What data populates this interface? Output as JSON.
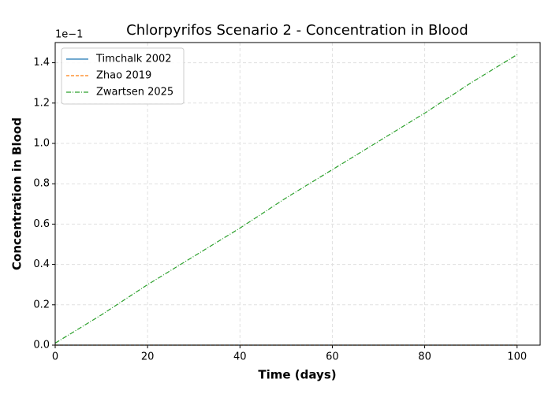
{
  "chart_data": {
    "type": "line",
    "title": "Chlorpyrifos Scenario 2 - Concentration in Blood",
    "x_label": "Time (days)",
    "y_label": "Concentration in Blood",
    "y_offset_label": "1e−1",
    "x": [
      0,
      10,
      20,
      30,
      40,
      50,
      60,
      70,
      80,
      90,
      100
    ],
    "series": [
      {
        "name": "Timchalk 2002",
        "color": "#1f77b4",
        "linestyle": "solid",
        "values": [
          0,
          0,
          0,
          0,
          0,
          0,
          0,
          0,
          0,
          0,
          0
        ]
      },
      {
        "name": "Zhao 2019",
        "color": "#ff7f0e",
        "linestyle": "dashed",
        "values": [
          0,
          0,
          0,
          0,
          0,
          0,
          0,
          0,
          0,
          0,
          0
        ]
      },
      {
        "name": "Zwartsen 2025",
        "color": "#2ca02c",
        "linestyle": "dashdot",
        "values": [
          0.01,
          0.15,
          0.3,
          0.44,
          0.58,
          0.73,
          0.87,
          1.01,
          1.15,
          1.3,
          1.44
        ]
      }
    ],
    "xlim": [
      0,
      105
    ],
    "ylim": [
      0,
      1.5
    ],
    "xticks": [
      0,
      20,
      40,
      60,
      80,
      100
    ],
    "yticks": [
      {
        "value": 0,
        "label": "0.0"
      },
      {
        "value": 0.2,
        "label": "0.2"
      },
      {
        "value": 0.4,
        "label": "0.4"
      },
      {
        "value": 0.6,
        "label": "0.6"
      },
      {
        "value": 0.8,
        "label": "0.8"
      },
      {
        "value": 1.0,
        "label": "1.0"
      },
      {
        "value": 1.2,
        "label": "1.2"
      },
      {
        "value": 1.4,
        "label": "1.4"
      }
    ],
    "grid": true,
    "legend": "upper-left"
  }
}
